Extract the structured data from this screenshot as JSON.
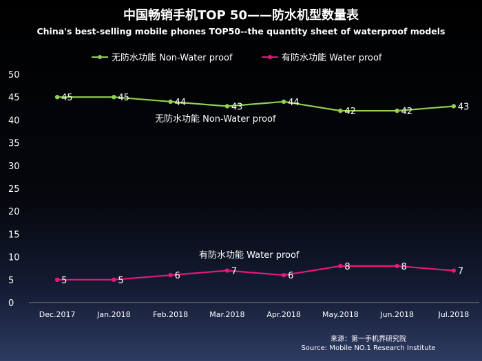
{
  "chart_data": {
    "type": "line",
    "title": "中国畅销手机TOP 50——防水机型数量表",
    "subtitle": "China's best-selling mobile phones TOP50--the quantity sheet of waterproof models",
    "categories": [
      "Dec.2017",
      "Jan.2018",
      "Feb.2018",
      "Mar.2018",
      "Apr.2018",
      "May.2018",
      "Jun.2018",
      "Jul.2018"
    ],
    "series": [
      {
        "name": "无防水功能  Non-Water proof",
        "color": "#92d050",
        "values": [
          45,
          45,
          44,
          43,
          44,
          42,
          42,
          43
        ]
      },
      {
        "name": "有防水功能  Water proof",
        "color": "#e6187a",
        "values": [
          5,
          5,
          6,
          7,
          6,
          8,
          8,
          7
        ]
      }
    ],
    "annotations": [
      "无防水功能   Non-Water proof",
      "有防水功能    Water proof"
    ],
    "ylim": [
      0,
      50
    ],
    "yticks": [
      0,
      5,
      10,
      15,
      20,
      25,
      30,
      35,
      40,
      45,
      50
    ],
    "grid": false,
    "legend": "top-center",
    "source_cn": "来源：第一手机界研究院",
    "source_en": "Source: Mobile NO.1 Research Institute"
  }
}
